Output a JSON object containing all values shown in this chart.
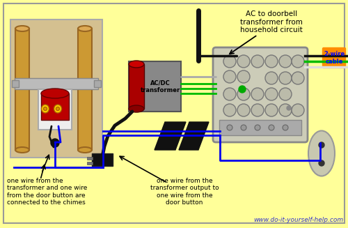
{
  "bg_color": "#FFFF99",
  "website": "www.do-it-yourself-help.com",
  "website_color": "#3333CC",
  "text_ac": "AC to doorbell\ntransformer from\nhousehold circuit",
  "text_left_label": "one wire from the\ntransformer and one wire\nfrom the door button are\nconnected to the chimes",
  "text_right_label": "one wire from the\ntransformer output to\none wire from the\ndoor button",
  "label_2wire": "2-wire\ncable",
  "wire_blue": "#0000EE",
  "wire_green": "#00BB00",
  "wire_black": "#111111",
  "wire_white": "#DDDDDD",
  "wire_gray": "#AAAAAA",
  "chime_box_bg": "#D4C090",
  "chime_tube_color": "#CC9933",
  "chime_tube_dark": "#996622",
  "transformer_gray": "#888888",
  "transformer_red": "#AA0000",
  "jbox_face": "#CCCCB8",
  "jbox_edge": "#888888",
  "button_color": "#BBBBBB",
  "orange_label": "#FF8C00",
  "blue_label_text": "#0000FF"
}
